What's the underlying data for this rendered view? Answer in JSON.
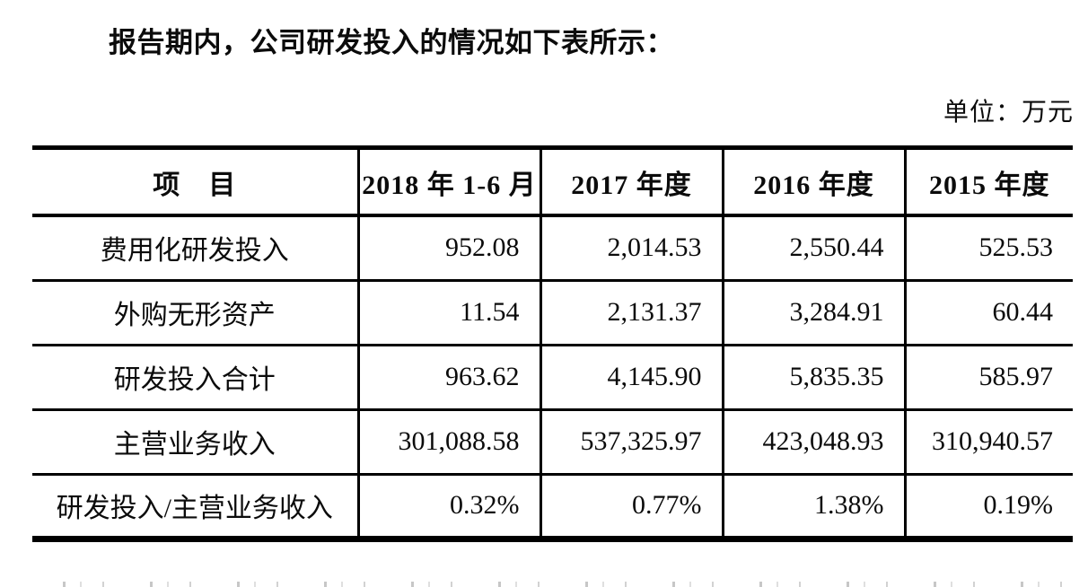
{
  "page": {
    "intro_text": "报告期内，公司研发投入的情况如下表所示：",
    "unit_label": "单位：万元"
  },
  "table": {
    "headers": [
      "项　目",
      "2018 年 1-6 月",
      "2017 年度",
      "2016 年度",
      "2015 年度"
    ],
    "rows": [
      {
        "label": "费用化研发投入",
        "values": [
          "952.08",
          "2,014.53",
          "2,550.44",
          "525.53"
        ]
      },
      {
        "label": "外购无形资产",
        "values": [
          "11.54",
          "2,131.37",
          "3,284.91",
          "60.44"
        ]
      },
      {
        "label": "研发投入合计",
        "values": [
          "963.62",
          "4,145.90",
          "5,835.35",
          "585.97"
        ]
      },
      {
        "label": "主营业务收入",
        "values": [
          "301,088.58",
          "537,325.97",
          "423,048.93",
          "310,940.57"
        ]
      },
      {
        "label": "研发投入/主营业务收入",
        "values": [
          "0.32%",
          "0.77%",
          "1.38%",
          "0.19%"
        ]
      }
    ]
  }
}
